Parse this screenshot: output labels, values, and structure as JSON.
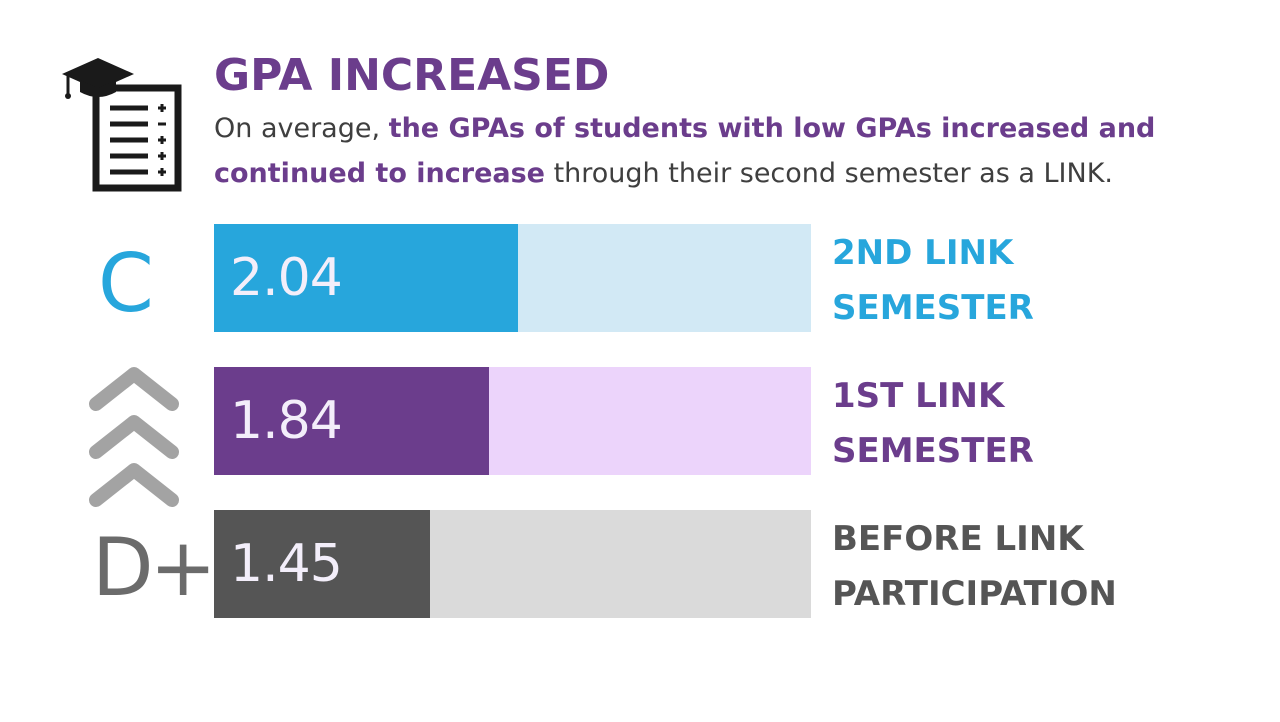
{
  "title": "GPA INCREASED",
  "subtitle": {
    "part1": "On average, ",
    "highlight": "the GPAs of students with low GPAs increased and continued to increase",
    "part2": " through their second semester as a LINK."
  },
  "grades": {
    "top": "C",
    "bottom": "D+"
  },
  "icons": {
    "checklist": "graduation-checklist-icon",
    "chevrons": "up-chevrons-icon"
  },
  "chart_data": {
    "type": "bar",
    "orientation": "horizontal",
    "xlim": [
      0,
      4.0
    ],
    "bars": [
      {
        "label_line1": "2ND LINK",
        "label_line2": "SEMESTER",
        "value": 2.04,
        "display": "2.04",
        "fill_color": "#27a6dc",
        "track_color": "#d2e9f5",
        "label_color": "#27a6dc"
      },
      {
        "label_line1": "1ST LINK",
        "label_line2": "SEMESTER",
        "value": 1.84,
        "display": "1.84",
        "fill_color": "#6b3d8c",
        "track_color": "#ecd4fb",
        "label_color": "#6b3d8c"
      },
      {
        "label_line1": "BEFORE LINK",
        "label_line2": "PARTICIPATION",
        "value": 1.45,
        "display": "1.45",
        "fill_color": "#555555",
        "track_color": "#dadada",
        "label_color": "#555555"
      }
    ]
  }
}
